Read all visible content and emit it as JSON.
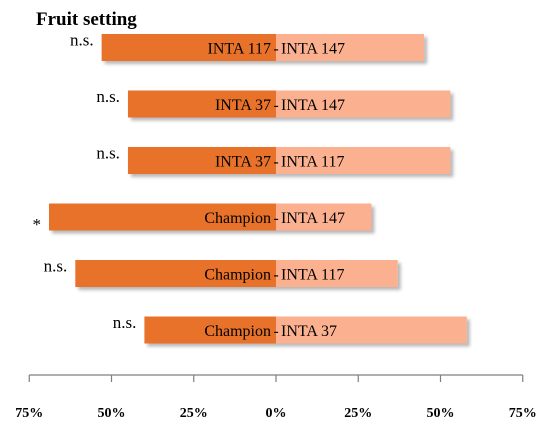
{
  "chart_data": {
    "type": "bar",
    "orientation": "horizontal-diverging",
    "title": "Fruit setting",
    "xlim": [
      -75,
      75
    ],
    "x_ticks": [
      "75%",
      "50%",
      "25%",
      "0%",
      "25%",
      "50%",
      "75%"
    ],
    "colors": {
      "left": "#e8722a",
      "right": "#fbb08f"
    },
    "rows": [
      {
        "left_name": "INTA 117",
        "right_name": "INTA 147",
        "left_value": 53,
        "right_value": 45,
        "significance": "n.s."
      },
      {
        "left_name": "INTA 37",
        "right_name": "INTA 147",
        "left_value": 45,
        "right_value": 53,
        "significance": "n.s."
      },
      {
        "left_name": "INTA 37",
        "right_name": "INTA 117",
        "left_value": 45,
        "right_value": 53,
        "significance": "n.s."
      },
      {
        "left_name": "Champion",
        "right_name": "INTA 147",
        "left_value": 69,
        "right_value": 29,
        "significance": "*"
      },
      {
        "left_name": "Champion",
        "right_name": "INTA 117",
        "left_value": 61,
        "right_value": 37,
        "significance": "n.s."
      },
      {
        "left_name": "Champion",
        "right_name": "INTA 37",
        "left_value": 40,
        "right_value": 58,
        "significance": "n.s."
      }
    ]
  }
}
